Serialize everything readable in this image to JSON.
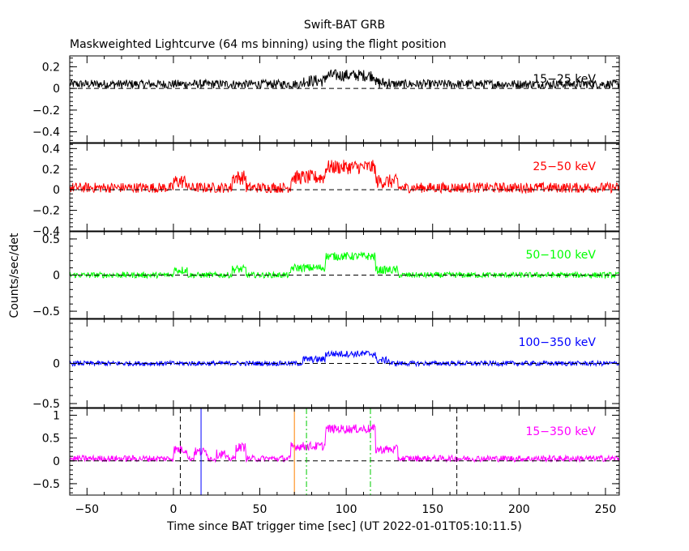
{
  "title": "Swift-BAT GRB",
  "subtitle": "Maskweighted Lightcurve (64 ms binning) using the flight position",
  "chart_data": {
    "type": "line",
    "title": "Swift-BAT GRB",
    "subtitle": "Maskweighted Lightcurve (64 ms binning) using the flight position",
    "xlabel": "Time since BAT trigger time [sec] (UT 2022-01-01T05:10:11.5)",
    "ylabel": "Counts/sec/det",
    "xlim": [
      -60,
      258
    ],
    "x_ticks": [
      -50,
      0,
      50,
      100,
      150,
      200,
      250
    ],
    "panels": [
      {
        "band": "15-25 keV",
        "color": "#000000",
        "ylim": [
          -0.5,
          0.3
        ],
        "y_ticks": [
          0.2,
          0,
          -0.2,
          -0.4
        ],
        "y_tick_labels": [
          "0.2",
          "0",
          "−0.2",
          "−0.4"
        ],
        "baseline": 0.04,
        "noise": 0.04,
        "features": [
          {
            "start": 75,
            "end": 88,
            "level": 0.07
          },
          {
            "start": 88,
            "end": 117,
            "level": 0.12
          },
          {
            "start": 117,
            "end": 125,
            "level": 0.05
          }
        ]
      },
      {
        "band": "25-50 keV",
        "color": "#ff0000",
        "ylim": [
          -0.4,
          0.45
        ],
        "y_ticks": [
          0.4,
          0.2,
          0,
          -0.2,
          -0.4
        ],
        "y_tick_labels": [
          "0.4",
          "0.2",
          "0",
          "−0.2",
          "−0.4"
        ],
        "baseline": 0.02,
        "noise": 0.05,
        "features": [
          {
            "start": 0,
            "end": 8,
            "level": 0.08
          },
          {
            "start": 34,
            "end": 42,
            "level": 0.12
          },
          {
            "start": 68,
            "end": 88,
            "level": 0.12
          },
          {
            "start": 88,
            "end": 117,
            "level": 0.22
          },
          {
            "start": 117,
            "end": 130,
            "level": 0.08
          }
        ]
      },
      {
        "band": "50-100 keV",
        "color": "#00ff00",
        "ylim": [
          -0.6,
          0.6
        ],
        "y_ticks": [
          0.5,
          0,
          -0.5
        ],
        "y_tick_labels": [
          "0.5",
          "0",
          "−0.5"
        ],
        "baseline": 0.0,
        "noise": 0.04,
        "features": [
          {
            "start": 0,
            "end": 8,
            "level": 0.07
          },
          {
            "start": 34,
            "end": 42,
            "level": 0.08
          },
          {
            "start": 68,
            "end": 88,
            "level": 0.1
          },
          {
            "start": 88,
            "end": 117,
            "level": 0.26
          },
          {
            "start": 117,
            "end": 130,
            "level": 0.07
          }
        ]
      },
      {
        "band": "100-350 keV",
        "color": "#0000ff",
        "ylim": [
          -0.55,
          0.55
        ],
        "y_ticks": [
          0,
          -0.5
        ],
        "y_tick_labels": [
          "0",
          "−0.5"
        ],
        "baseline": 0.0,
        "noise": 0.03,
        "features": [
          {
            "start": 75,
            "end": 88,
            "level": 0.05
          },
          {
            "start": 88,
            "end": 117,
            "level": 0.12
          },
          {
            "start": 117,
            "end": 125,
            "level": 0.04
          }
        ]
      },
      {
        "band": "15-350 keV",
        "color": "#ff00ff",
        "ylim": [
          -0.75,
          1.15
        ],
        "y_ticks": [
          1,
          0.5,
          0,
          -0.5
        ],
        "y_tick_labels": [
          "1",
          "0.5",
          "0",
          "−0.5"
        ],
        "baseline": 0.05,
        "noise": 0.07,
        "features": [
          {
            "start": 0,
            "end": 8,
            "level": 0.25
          },
          {
            "start": 12,
            "end": 20,
            "level": 0.2
          },
          {
            "start": 25,
            "end": 30,
            "level": 0.15
          },
          {
            "start": 36,
            "end": 42,
            "level": 0.3
          },
          {
            "start": 68,
            "end": 88,
            "level": 0.32
          },
          {
            "start": 88,
            "end": 117,
            "level": 0.7
          },
          {
            "start": 117,
            "end": 130,
            "level": 0.25
          }
        ],
        "markers": [
          {
            "x": 4,
            "color": "#000000",
            "style": "dashed"
          },
          {
            "x": 16,
            "color": "#0000ff",
            "style": "solid"
          },
          {
            "x": 70,
            "color": "#ff8000",
            "style": "solid"
          },
          {
            "x": 77,
            "color": "#00cc00",
            "style": "dashdot"
          },
          {
            "x": 114,
            "color": "#00cc00",
            "style": "dashdot"
          },
          {
            "x": 164,
            "color": "#000000",
            "style": "dashed"
          }
        ]
      }
    ]
  }
}
